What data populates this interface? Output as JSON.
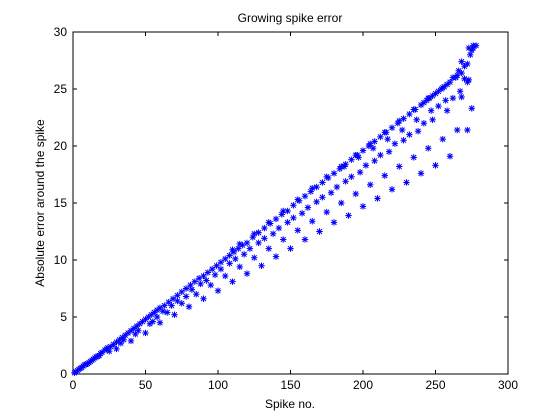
{
  "chart_data": {
    "type": "scatter",
    "title": "Growing spike error",
    "xlabel": "Spike no.",
    "ylabel": "Absolute error around the spike",
    "xlim": [
      0,
      300
    ],
    "ylim": [
      0,
      30
    ],
    "xticks": [
      0,
      50,
      100,
      150,
      200,
      250,
      300
    ],
    "yticks": [
      0,
      5,
      10,
      15,
      20,
      25,
      30
    ],
    "grid": false,
    "marker": "asterisk",
    "marker_color": "#0000ff",
    "series": [
      {
        "points": [
          [
            1,
            0.1
          ],
          [
            2,
            0.2
          ],
          [
            3,
            0.3
          ],
          [
            4,
            0.4
          ],
          [
            5,
            0.5
          ],
          [
            6,
            0.55
          ],
          [
            7,
            0.7
          ],
          [
            8,
            0.8
          ],
          [
            9,
            0.85
          ],
          [
            10,
            0.9
          ],
          [
            11,
            1.0
          ],
          [
            12,
            1.1
          ],
          [
            13,
            1.2
          ],
          [
            14,
            1.3
          ],
          [
            15,
            1.4
          ],
          [
            16,
            1.5
          ],
          [
            17,
            1.55
          ],
          [
            18,
            1.6
          ],
          [
            19,
            1.8
          ],
          [
            20,
            1.9
          ],
          [
            22,
            2.1
          ],
          [
            24,
            2.3
          ],
          [
            26,
            2.4
          ],
          [
            28,
            2.6
          ],
          [
            30,
            2.8
          ],
          [
            32,
            3.0
          ],
          [
            34,
            3.2
          ],
          [
            36,
            3.4
          ],
          [
            38,
            3.6
          ],
          [
            40,
            3.8
          ],
          [
            42,
            4.0
          ],
          [
            44,
            4.2
          ],
          [
            46,
            4.4
          ],
          [
            48,
            4.6
          ],
          [
            50,
            4.8
          ],
          [
            52,
            5.0
          ],
          [
            54,
            5.2
          ],
          [
            56,
            5.4
          ],
          [
            58,
            5.6
          ],
          [
            60,
            5.8
          ],
          [
            63,
            6.0
          ],
          [
            66,
            6.3
          ],
          [
            69,
            6.6
          ],
          [
            72,
            6.9
          ],
          [
            75,
            7.2
          ],
          [
            78,
            7.5
          ],
          [
            81,
            7.8
          ],
          [
            84,
            8.1
          ],
          [
            87,
            8.4
          ],
          [
            90,
            8.6
          ],
          [
            93,
            8.9
          ],
          [
            96,
            9.2
          ],
          [
            99,
            9.5
          ],
          [
            102,
            9.8
          ],
          [
            105,
            10.1
          ],
          [
            108,
            10.4
          ],
          [
            111,
            10.7
          ],
          [
            114,
            11.0
          ],
          [
            117,
            11.3
          ],
          [
            120,
            11.5
          ],
          [
            124,
            12.0
          ],
          [
            128,
            12.4
          ],
          [
            132,
            12.8
          ],
          [
            136,
            13.2
          ],
          [
            140,
            13.6
          ],
          [
            144,
            14.0
          ],
          [
            148,
            14.3
          ],
          [
            152,
            14.8
          ],
          [
            156,
            15.2
          ],
          [
            160,
            15.6
          ],
          [
            164,
            16.0
          ],
          [
            168,
            16.4
          ],
          [
            172,
            16.8
          ],
          [
            176,
            17.2
          ],
          [
            180,
            17.6
          ],
          [
            184,
            18.0
          ],
          [
            188,
            18.4
          ],
          [
            192,
            18.8
          ],
          [
            196,
            19.2
          ],
          [
            200,
            19.6
          ],
          [
            204,
            20.0
          ],
          [
            208,
            20.4
          ],
          [
            212,
            20.8
          ],
          [
            216,
            21.2
          ],
          [
            220,
            21.6
          ],
          [
            224,
            22.0
          ],
          [
            228,
            22.4
          ],
          [
            232,
            22.8
          ],
          [
            236,
            23.2
          ],
          [
            240,
            23.6
          ],
          [
            244,
            24.0
          ],
          [
            248,
            24.4
          ],
          [
            252,
            24.8
          ],
          [
            256,
            25.2
          ],
          [
            260,
            25.6
          ],
          [
            264,
            26.0
          ],
          [
            268,
            26.4
          ],
          [
            272,
            27.2
          ],
          [
            275,
            28.4
          ],
          [
            278,
            28.8
          ],
          [
            276,
            28.6
          ],
          [
            274,
            28.0
          ],
          [
            270,
            27.0
          ],
          [
            266,
            26.6
          ],
          [
            262,
            26.0
          ],
          [
            258,
            25.4
          ],
          [
            254,
            25.0
          ],
          [
            250,
            24.6
          ],
          [
            246,
            24.2
          ],
          [
            242,
            23.8
          ],
          [
            35,
            3.0
          ],
          [
            45,
            3.8
          ],
          [
            55,
            4.6
          ],
          [
            65,
            5.4
          ],
          [
            75,
            6.2
          ],
          [
            85,
            7.0
          ],
          [
            95,
            7.8
          ],
          [
            105,
            8.6
          ],
          [
            115,
            9.4
          ],
          [
            125,
            10.2
          ],
          [
            135,
            11.0
          ],
          [
            145,
            11.8
          ],
          [
            155,
            12.6
          ],
          [
            165,
            13.4
          ],
          [
            175,
            14.2
          ],
          [
            185,
            15.0
          ],
          [
            195,
            15.8
          ],
          [
            205,
            16.6
          ],
          [
            215,
            17.4
          ],
          [
            225,
            18.2
          ],
          [
            235,
            19.0
          ],
          [
            245,
            19.8
          ],
          [
            255,
            20.6
          ],
          [
            265,
            21.4
          ],
          [
            275,
            23.3
          ],
          [
            40,
            2.9
          ],
          [
            60,
            4.5
          ],
          [
            80,
            5.9
          ],
          [
            100,
            7.3
          ],
          [
            120,
            8.8
          ],
          [
            140,
            10.3
          ],
          [
            160,
            11.8
          ],
          [
            180,
            13.3
          ],
          [
            200,
            14.7
          ],
          [
            220,
            16.2
          ],
          [
            240,
            17.6
          ],
          [
            260,
            19.1
          ],
          [
            272,
            21.4
          ],
          [
            250,
            18.3
          ],
          [
            230,
            16.8
          ],
          [
            210,
            15.4
          ],
          [
            190,
            13.9
          ],
          [
            170,
            12.5
          ],
          [
            150,
            11.0
          ],
          [
            130,
            9.5
          ],
          [
            110,
            8.1
          ],
          [
            90,
            6.6
          ],
          [
            70,
            5.2
          ],
          [
            50,
            3.6
          ],
          [
            30,
            2.2
          ],
          [
            58,
            5.0
          ],
          [
            68,
            6.0
          ],
          [
            78,
            6.8
          ],
          [
            88,
            7.9
          ],
          [
            98,
            8.7
          ],
          [
            108,
            9.7
          ],
          [
            118,
            10.5
          ],
          [
            128,
            11.5
          ],
          [
            138,
            12.3
          ],
          [
            148,
            13.3
          ],
          [
            158,
            14.1
          ],
          [
            168,
            15.1
          ],
          [
            178,
            15.9
          ],
          [
            188,
            16.9
          ],
          [
            198,
            17.7
          ],
          [
            208,
            18.7
          ],
          [
            218,
            19.5
          ],
          [
            228,
            20.5
          ],
          [
            238,
            21.3
          ],
          [
            248,
            22.3
          ],
          [
            258,
            23.1
          ],
          [
            268,
            24.3
          ],
          [
            272,
            25.6
          ],
          [
            270,
            25.9
          ],
          [
            262,
            24.2
          ],
          [
            252,
            23.5
          ],
          [
            242,
            22.0
          ],
          [
            232,
            21.0
          ],
          [
            222,
            20.2
          ],
          [
            212,
            19.2
          ],
          [
            202,
            18.3
          ],
          [
            192,
            17.3
          ],
          [
            182,
            16.4
          ],
          [
            172,
            15.5
          ],
          [
            162,
            14.6
          ],
          [
            152,
            13.7
          ],
          [
            142,
            12.8
          ],
          [
            132,
            11.9
          ],
          [
            122,
            11.0
          ],
          [
            112,
            10.1
          ],
          [
            102,
            9.2
          ],
          [
            92,
            8.2
          ],
          [
            82,
            7.4
          ],
          [
            72,
            6.4
          ],
          [
            62,
            5.5
          ],
          [
            53,
            4.4
          ],
          [
            43,
            3.5
          ],
          [
            33,
            2.7
          ],
          [
            25,
            2.0
          ],
          [
            23,
            2.2
          ],
          [
            187,
            18.2
          ],
          [
            197,
            19.0
          ],
          [
            207,
            19.8
          ],
          [
            217,
            20.6
          ],
          [
            227,
            21.4
          ],
          [
            237,
            22.3
          ],
          [
            247,
            23.1
          ],
          [
            257,
            24.0
          ],
          [
            267,
            24.8
          ],
          [
            273,
            25.8
          ],
          [
            110,
            10.9
          ],
          [
            115,
            11.4
          ],
          [
            125,
            12.3
          ],
          [
            135,
            13.3
          ],
          [
            145,
            14.3
          ],
          [
            155,
            15.3
          ],
          [
            165,
            16.3
          ],
          [
            175,
            17.3
          ],
          [
            185,
            18.2
          ],
          [
            195,
            19.2
          ],
          [
            205,
            20.2
          ],
          [
            215,
            21.2
          ],
          [
            225,
            22.2
          ],
          [
            235,
            23.2
          ],
          [
            245,
            24.2
          ],
          [
            255,
            25.1
          ],
          [
            265,
            26.2
          ],
          [
            268,
            27.4
          ],
          [
            273,
            28.6
          ],
          [
            276,
            28.8
          ]
        ]
      }
    ]
  }
}
